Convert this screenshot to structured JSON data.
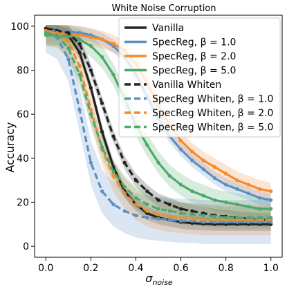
{
  "chart_data": {
    "type": "line",
    "title": "White Noise Corruption",
    "xlabel_main": "σ",
    "xlabel_sub": "noise",
    "ylabel": "Accuracy",
    "xlim": [
      -0.05,
      1.05
    ],
    "ylim": [
      -5,
      105
    ],
    "xticks": [
      0.0,
      0.2,
      0.4,
      0.6,
      0.8,
      1.0
    ],
    "xtick_labels": [
      "0.0",
      "0.2",
      "0.4",
      "0.6",
      "0.8",
      "1.0"
    ],
    "yticks": [
      0,
      20,
      40,
      60,
      80,
      100
    ],
    "ytick_labels": [
      "0",
      "20",
      "40",
      "60",
      "80",
      "100"
    ],
    "grid": false,
    "legend_position": "top-right",
    "x": [
      0.0,
      0.05,
      0.1,
      0.15,
      0.2,
      0.25,
      0.3,
      0.35,
      0.4,
      0.45,
      0.5,
      0.55,
      0.6,
      0.65,
      0.7,
      0.75,
      0.8,
      0.85,
      0.9,
      0.95,
      1.0
    ],
    "series": [
      {
        "name": "Vanilla",
        "beta": "",
        "color": "#222222",
        "dashed": false,
        "markers": true,
        "values": [
          99,
          98,
          96,
          88,
          72,
          52,
          36,
          25,
          19,
          15,
          13,
          12,
          11,
          10.5,
          10.2,
          10,
          10,
          10,
          10,
          10,
          10
        ],
        "band": 3
      },
      {
        "name": "SpecReg, β = ",
        "beta": "1.0",
        "color": "#5b8fc2",
        "dashed": false,
        "markers": true,
        "values": [
          98,
          98,
          97.5,
          97,
          96,
          94,
          91,
          86,
          78,
          68,
          58,
          50,
          44,
          39,
          35,
          31,
          28,
          26,
          24,
          22,
          21
        ],
        "band": 3
      },
      {
        "name": "SpecReg, β = ",
        "beta": "2.0",
        "color": "#f28a30",
        "dashed": false,
        "markers": true,
        "values": [
          97,
          97,
          96.5,
          96,
          95,
          94,
          92,
          89,
          83,
          74,
          64,
          55,
          48,
          43,
          39,
          36,
          33,
          30,
          28,
          26,
          25
        ],
        "band": 4
      },
      {
        "name": "SpecReg, β = ",
        "beta": "5.0",
        "color": "#4ea86b",
        "dashed": false,
        "markers": true,
        "values": [
          96,
          96,
          95.5,
          94,
          91,
          86,
          78,
          67,
          55,
          46,
          38,
          32,
          28,
          25,
          23,
          21,
          20,
          19,
          18,
          17,
          17
        ],
        "band": 5
      },
      {
        "name": "Vanilla Whiten",
        "beta": "",
        "color": "#222222",
        "dashed": true,
        "markers": true,
        "values": [
          99,
          98,
          97,
          92,
          80,
          65,
          50,
          38,
          30,
          25,
          21,
          19,
          17,
          16,
          15,
          14,
          13.5,
          13,
          12.5,
          12,
          12
        ],
        "band": 3
      },
      {
        "name": "SpecReg  Whiten, β = ",
        "beta": "1.0",
        "color": "#5b8fc2",
        "dashed": true,
        "markers": true,
        "values": [
          98,
          95,
          85,
          62,
          38,
          25,
          19,
          16,
          14,
          13,
          12.5,
          12,
          11.5,
          11.5,
          11,
          11,
          11,
          11,
          11,
          11,
          11
        ],
        "band": 10
      },
      {
        "name": "SpecReg  Whiten, β = ",
        "beta": "2.0",
        "color": "#f28a30",
        "dashed": true,
        "markers": true,
        "values": [
          98,
          97,
          93,
          82,
          62,
          44,
          32,
          24,
          19,
          16,
          14.5,
          13.5,
          13,
          12.5,
          12,
          12,
          12,
          12,
          12,
          12,
          12
        ],
        "band": 7
      },
      {
        "name": "SpecReg  Whiten, β = ",
        "beta": "5.0",
        "color": "#4ea86b",
        "dashed": true,
        "markers": true,
        "values": [
          97,
          96,
          90,
          78,
          60,
          45,
          34,
          27,
          22,
          19,
          17,
          16,
          15,
          14.5,
          14,
          13.5,
          13,
          13,
          13,
          13,
          13
        ],
        "band": 5
      }
    ]
  }
}
